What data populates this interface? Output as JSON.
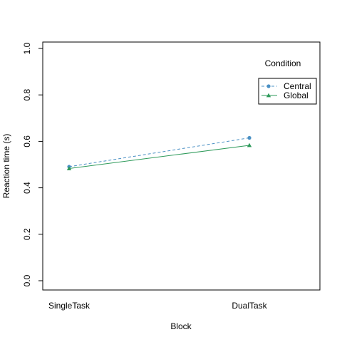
{
  "chart_data": {
    "type": "line",
    "title": "",
    "xlabel": "Block",
    "ylabel": "Reaction time (s)",
    "categories": [
      "SingleTask",
      "DualTask"
    ],
    "ylim": [
      0,
      1
    ],
    "yticks": [
      "0.0",
      "0.2",
      "0.4",
      "0.6",
      "0.8",
      "1.0"
    ],
    "grid": false,
    "legend": {
      "title": "Condition",
      "placement": "top-right"
    },
    "series": [
      {
        "name": "Central",
        "values": [
          0.491,
          0.615
        ],
        "color": "#4a90c4",
        "line": "dashed",
        "marker": "circle"
      },
      {
        "name": "Global",
        "values": [
          0.483,
          0.583
        ],
        "color": "#2e9a5a",
        "line": "solid",
        "marker": "triangle"
      }
    ]
  }
}
